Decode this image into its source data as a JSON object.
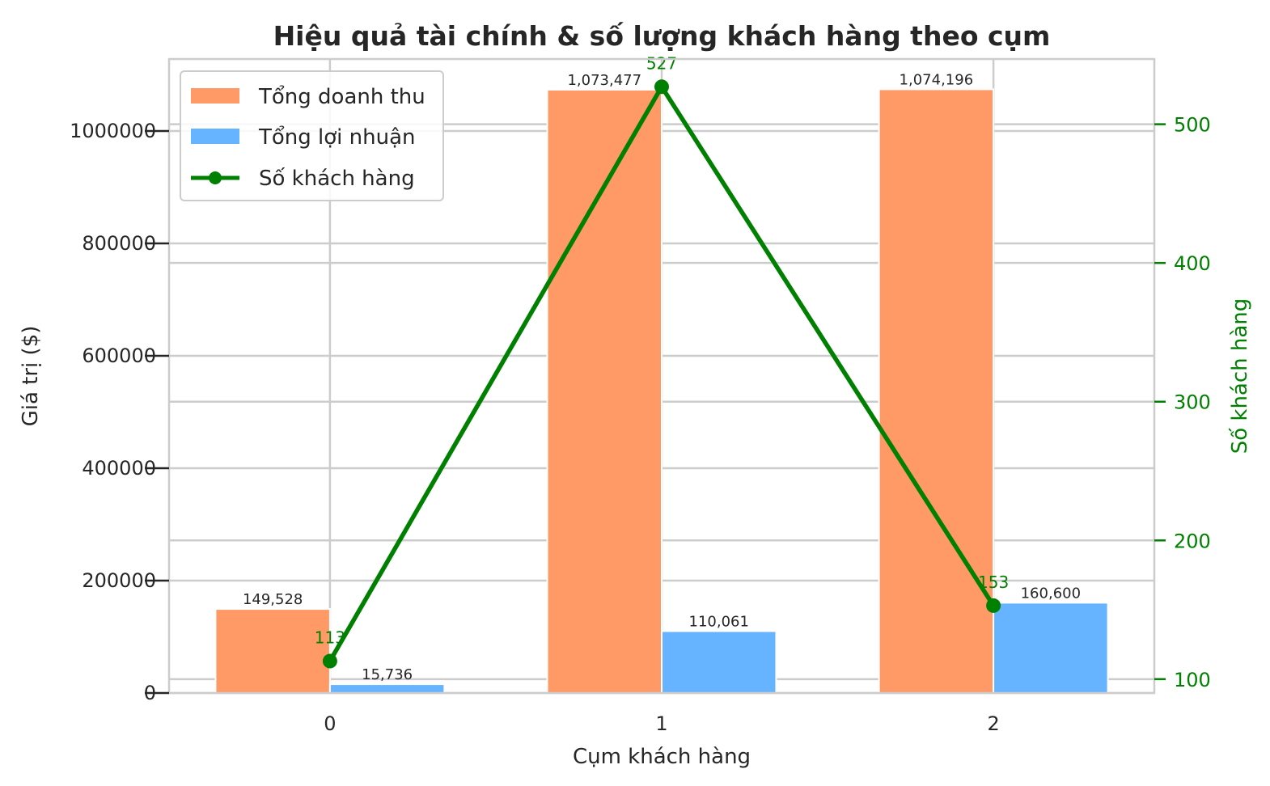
{
  "chart_data": {
    "type": "bar",
    "title": "Hiệu quả tài chính & số lượng khách hàng theo cụm",
    "xlabel": "Cụm khách hàng",
    "ylabel": "Giá trị ($)",
    "y2label": "Số khách hàng",
    "categories": [
      "0",
      "1",
      "2"
    ],
    "ylim": [
      0,
      1128000
    ],
    "y2lim": [
      90,
      547
    ],
    "yticks": [
      0,
      200000,
      400000,
      600000,
      800000,
      1000000
    ],
    "y2ticks": [
      100,
      200,
      300,
      400,
      500
    ],
    "grid": true,
    "legend_position": "top-left",
    "series": [
      {
        "name": "Tổng doanh thu",
        "kind": "bar",
        "axis": "left",
        "color": "#ff9966",
        "values": [
          149528,
          1073477,
          1074196
        ],
        "labels": [
          "149,528",
          "1,073,477",
          "1,074,196"
        ]
      },
      {
        "name": "Tổng lợi nhuận",
        "kind": "bar",
        "axis": "left",
        "color": "#66b3ff",
        "values": [
          15736,
          110061,
          160600
        ],
        "labels": [
          "15,736",
          "110,061",
          "160,600"
        ]
      },
      {
        "name": "Số khách hàng",
        "kind": "line",
        "axis": "right",
        "color": "#008000",
        "values": [
          113,
          527,
          153
        ],
        "labels": [
          "113",
          "527",
          "153"
        ]
      }
    ]
  }
}
